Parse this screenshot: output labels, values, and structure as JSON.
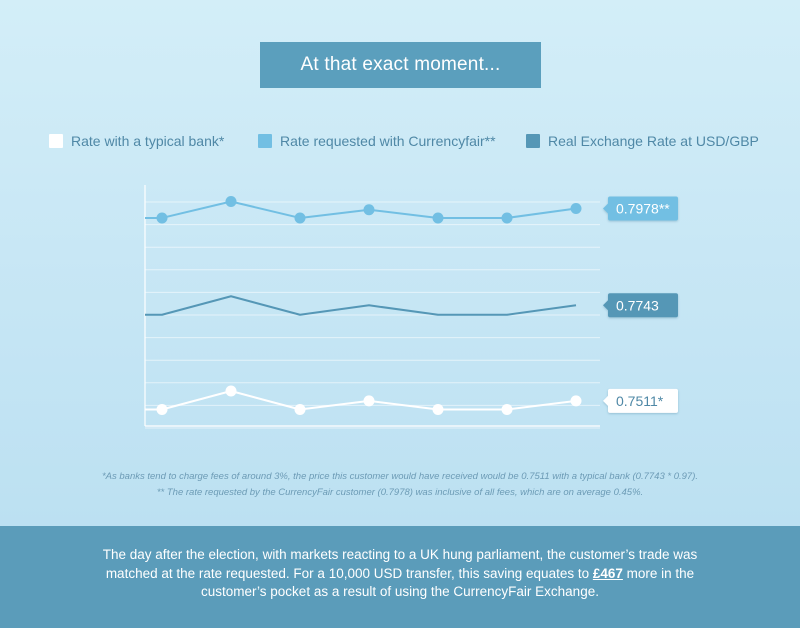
{
  "title": "At that exact moment...",
  "legend": [
    {
      "label": "Rate with a typical bank*",
      "color": "#ffffff"
    },
    {
      "label": "Rate requested with Currencyfair**",
      "color": "#72bfe3"
    },
    {
      "label": "Real Exchange Rate at USD/GBP",
      "color": "#5597b6"
    }
  ],
  "chart_data": {
    "type": "line",
    "x": [
      1,
      2,
      3,
      4,
      5,
      6,
      7
    ],
    "series": [
      {
        "name": "Rate requested with Currencyfair**",
        "color": "#72bfe3",
        "values": [
          0.7955,
          0.7995,
          0.7955,
          0.7975,
          0.7955,
          0.7955,
          0.7978
        ],
        "markers": true,
        "end_label": "0.7978**"
      },
      {
        "name": "Real Exchange Rate at USD/GBP",
        "color": "#5597b6",
        "values": [
          0.772,
          0.7765,
          0.772,
          0.7743,
          0.772,
          0.772,
          0.7743
        ],
        "markers": false,
        "end_label": "0.7743"
      },
      {
        "name": "Rate with a typical bank*",
        "color": "#ffffff",
        "values": [
          0.749,
          0.7535,
          0.749,
          0.7511,
          0.749,
          0.749,
          0.7511
        ],
        "markers": true,
        "end_label": "0.7511*"
      }
    ],
    "ylim": [
      0.745,
      0.8035
    ],
    "grid": true,
    "legend_position": "top"
  },
  "footnotes": [
    "*As banks tend to charge fees of around 3%, the price this customer would have received would be 0.7511 with a typical bank (0.7743 * 0.97).",
    "** The rate requested by the CurrencyFair customer (0.7978) was inclusive of all fees, which are on average 0.45%."
  ],
  "summary": {
    "part1": "The day after the election, with markets reacting to a UK hung parliament, the customer’s trade was matched at the rate requested. For a 10,000 USD transfer, this saving equates to ",
    "highlight": "£467",
    "part2": " more in the customer’s pocket as a result of using the CurrencyFair Exchange."
  }
}
